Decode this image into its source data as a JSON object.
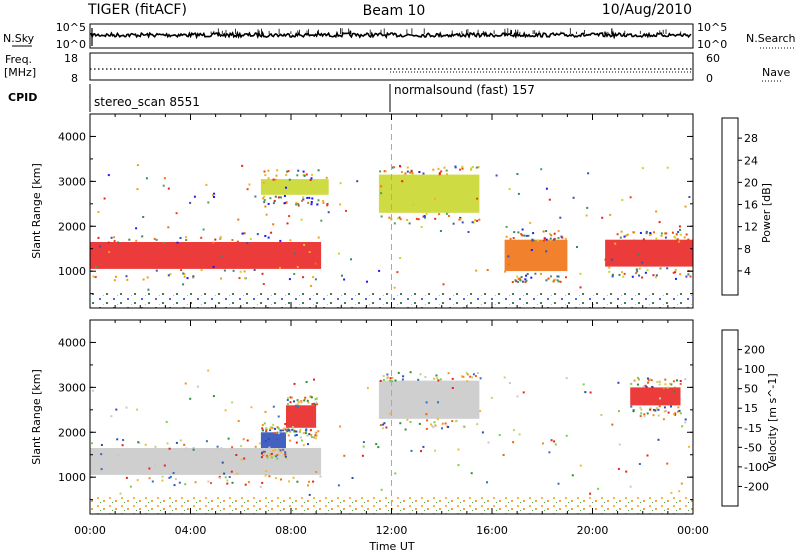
{
  "header": {
    "radar": "TIGER (fitACF)",
    "beam": "Beam 10",
    "date": "10/Aug/2010"
  },
  "status_panel": {
    "nsky_label": "N.Sky",
    "nsky_ticks": [
      "10^5",
      "10^0"
    ],
    "nsearch_label": "N.Search",
    "nsearch_ticks": [
      "10^5",
      "10^0"
    ],
    "freq_label": "Freq.",
    "freq_unit": "[MHz]",
    "freq_ticks": [
      "18",
      "8"
    ],
    "nave_label": "Nave",
    "nave_ticks": [
      "60",
      "0"
    ],
    "cpid_label": "CPID",
    "cpid_segments": [
      {
        "name": "stereo_scan",
        "id": "8551",
        "label": "stereo_scan 8551",
        "start_hour": 0
      },
      {
        "name": "normalsound (fast)",
        "id": "157",
        "label": "normalsound (fast) 157",
        "start_hour": 12
      }
    ]
  },
  "chart_data": [
    {
      "type": "heatmap",
      "quantity": "Power",
      "ylabel": "Slant Range [km]",
      "ylim": [
        180,
        4500
      ],
      "yticks": [
        "1000",
        "2000",
        "3000",
        "4000"
      ],
      "xlim": [
        0,
        24
      ],
      "xticks": [
        "00:00",
        "04:00",
        "08:00",
        "12:00",
        "16:00",
        "20:00",
        "00:00"
      ],
      "colorbar": {
        "label": "Power [dB]",
        "ticks": [
          "4",
          "8",
          "12",
          "16",
          "20",
          "24",
          "28"
        ],
        "colors": [
          "#1a1aff",
          "#3552b8",
          "#3d8070",
          "#4aa05a",
          "#c8d628",
          "#f0b020",
          "#f09a18",
          "#f07010",
          "#ee4010",
          "#e82020"
        ]
      },
      "echo_regions": [
        {
          "hours": [
            0,
            9.2
          ],
          "range_km": [
            1050,
            1650
          ],
          "power_db": 30
        },
        {
          "hours": [
            6.8,
            9.5
          ],
          "range_km": [
            2700,
            3050
          ],
          "power_db": 16
        },
        {
          "hours": [
            11.5,
            15.5
          ],
          "range_km": [
            2300,
            3150
          ],
          "power_db": 18
        },
        {
          "hours": [
            16.5,
            19.0
          ],
          "range_km": [
            1000,
            1700
          ],
          "power_db": 24
        },
        {
          "hours": [
            20.5,
            24
          ],
          "range_km": [
            1100,
            1700
          ],
          "power_db": 28
        }
      ]
    },
    {
      "type": "heatmap",
      "quantity": "Velocity",
      "ylabel": "Slant Range [km]",
      "ylim": [
        180,
        4500
      ],
      "yticks": [
        "1000",
        "2000",
        "3000",
        "4000"
      ],
      "xlim": [
        0,
        24
      ],
      "xticks": [
        "00:00",
        "04:00",
        "08:00",
        "12:00",
        "16:00",
        "20:00",
        "00:00"
      ],
      "xlabel": "Time UT",
      "colorbar": {
        "label": "Velocity [m s^-1]",
        "ticks": [
          "200",
          "100",
          "50",
          "15",
          "-15",
          "-50",
          "-100",
          "-200"
        ],
        "colors": [
          "#2a4ab8",
          "#3a68c8",
          "#2e9030",
          "#7ad040",
          "#b8d868",
          "#c8c8c8",
          "#f0b83a",
          "#f09020",
          "#f06010",
          "#e82020"
        ]
      },
      "echo_regions": [
        {
          "hours": [
            0,
            9.2
          ],
          "range_km": [
            1050,
            1650
          ],
          "velocity_ms": 0
        },
        {
          "hours": [
            6.8,
            7.8
          ],
          "range_km": [
            1650,
            2000
          ],
          "velocity_ms": 150
        },
        {
          "hours": [
            7.8,
            9.0
          ],
          "range_km": [
            2100,
            2600
          ],
          "velocity_ms": -200
        },
        {
          "hours": [
            11.5,
            15.5
          ],
          "range_km": [
            2300,
            3150
          ],
          "velocity_ms": 0
        },
        {
          "hours": [
            21.5,
            23.5
          ],
          "range_km": [
            2600,
            3000
          ],
          "velocity_ms": -200
        }
      ]
    }
  ]
}
